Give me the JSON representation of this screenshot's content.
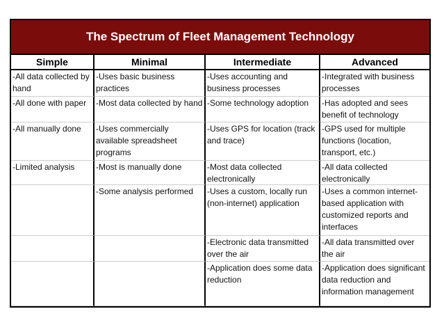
{
  "title": "The Spectrum of Fleet Management Technology",
  "columns": [
    "Simple",
    "Minimal",
    "Intermediate",
    "Advanced"
  ],
  "rows": [
    [
      "-All data collected by  hand",
      "-Uses basic business practices",
      "-Uses accounting and business processes",
      "-Integrated with business processes"
    ],
    [
      "-All done with paper",
      "-Most data collected by hand",
      "-Some technology adoption",
      "-Has adopted and sees benefit of technology"
    ],
    [
      "-All manually done",
      "-Uses commercially available spreadsheet programs",
      "-Uses GPS for location (track and trace)",
      "-GPS used for multiple functions (location, transport, etc.)"
    ],
    [
      "-Limited analysis",
      "-Most is manually done",
      "-Most data collected electronically",
      "-All data collected electronically"
    ],
    [
      "",
      "-Some analysis performed",
      "-Uses a custom, locally run (non-internet) application",
      "-Uses a common internet-based application with customized reports and interfaces"
    ],
    [
      "",
      "",
      "-Electronic data transmitted over the air",
      "-All data transmitted over the air"
    ],
    [
      "",
      "",
      "-Application does some data reduction",
      "-Application does significant data reduction and information management"
    ]
  ],
  "colors": {
    "title_bg": "#7b0c0c"
  }
}
